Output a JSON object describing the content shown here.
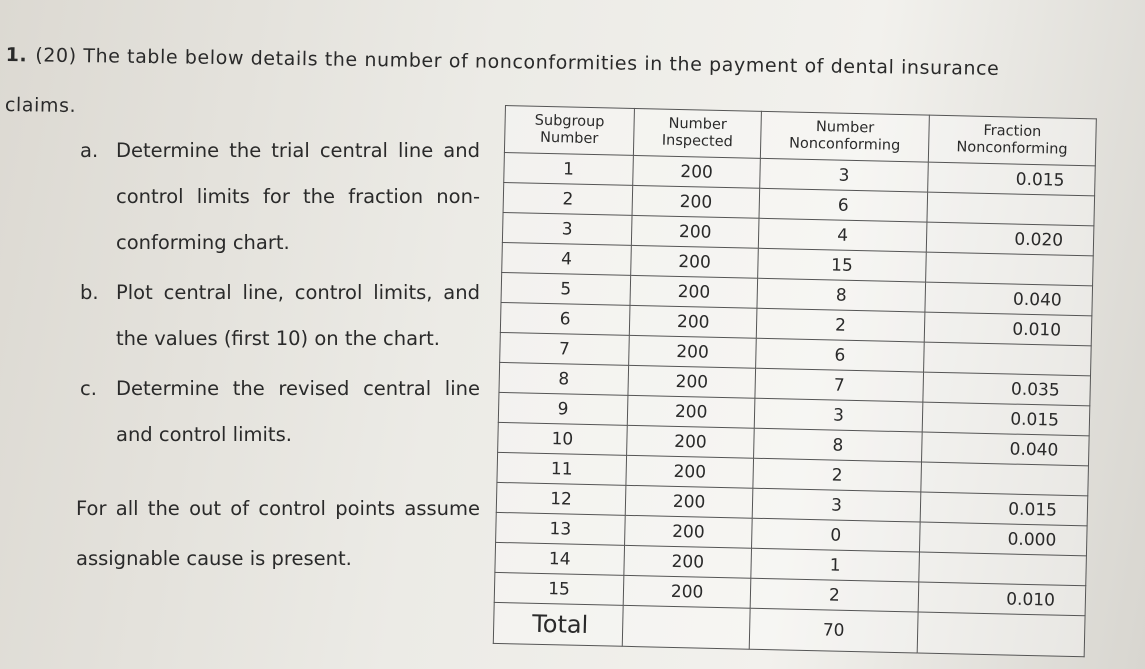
{
  "question": {
    "number": "1.",
    "text": "(20) The table below details the number of nonconformities in the payment of dental insurance claims.",
    "parts": [
      {
        "label": "a.",
        "text": "Determine the trial central line and control limits for the fraction non-conforming chart."
      },
      {
        "label": "b.",
        "text": "Plot central line, control limits, and the values (first 10) on the chart."
      },
      {
        "label": "c.",
        "text": "Determine the revised central line and control limits."
      }
    ],
    "note": "For all the out of control points assume assignable cause is present."
  },
  "table": {
    "headers": [
      "Subgroup Number",
      "Number Inspected",
      "Number Nonconforming",
      "Fraction Nonconforming"
    ],
    "rows": [
      [
        "1",
        "200",
        "3",
        "0.015"
      ],
      [
        "2",
        "200",
        "6",
        null
      ],
      [
        "3",
        "200",
        "4",
        "0.020"
      ],
      [
        "4",
        "200",
        "15",
        null
      ],
      [
        "5",
        "200",
        "8",
        "0.040"
      ],
      [
        "6",
        "200",
        "2",
        "0.010"
      ],
      [
        "7",
        "200",
        "6",
        null
      ],
      [
        "8",
        "200",
        "7",
        "0.035"
      ],
      [
        "9",
        "200",
        "3",
        "0.015"
      ],
      [
        "10",
        "200",
        "8",
        "0.040"
      ],
      [
        "11",
        "200",
        "2",
        null
      ],
      [
        "12",
        "200",
        "3",
        "0.015"
      ],
      [
        "13",
        "200",
        "0",
        "0.000"
      ],
      [
        "14",
        "200",
        "1",
        null
      ],
      [
        "15",
        "200",
        "2",
        "0.010"
      ]
    ],
    "total": {
      "label": "Total",
      "nonconforming": "70"
    }
  }
}
